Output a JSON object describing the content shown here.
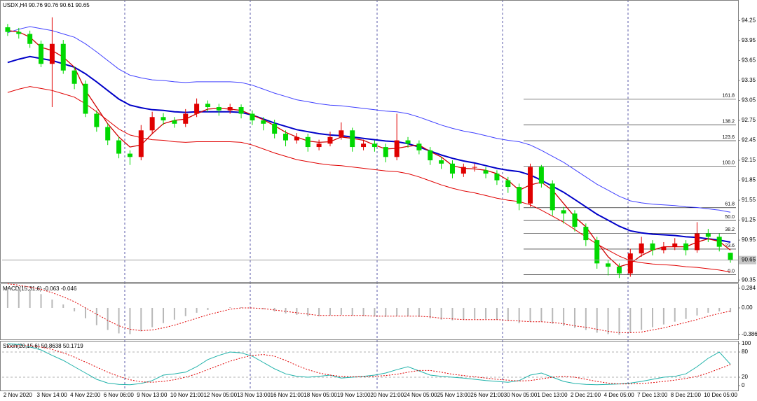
{
  "chart_data": [
    {
      "type": "candlestick",
      "title": "USDX,H4  90.76 90.76 90.61 90.65",
      "categories": [
        "2 Nov 2020",
        null,
        null,
        "3 Nov 14:00",
        null,
        null,
        "4 Nov 22:00",
        null,
        null,
        "6 Nov 06:00",
        null,
        null,
        "9 Nov 13:00",
        null,
        null,
        "10 Nov 21:00",
        null,
        null,
        "12 Nov 05:00",
        null,
        null,
        "13 Nov 13:00",
        null,
        null,
        "16 Nov 21:00",
        null,
        null,
        "18 Nov 05:00",
        null,
        null,
        "19 Nov 13:00",
        null,
        null,
        "20 Nov 21:00",
        null,
        null,
        "24 Nov 05:00",
        null,
        null,
        "25 Nov 13:00",
        null,
        null,
        "26 Nov 21:00",
        null,
        null,
        "30 Nov 05:00",
        null,
        null,
        "1 Dec 13:00",
        null,
        null,
        "2 Dec 21:00",
        null,
        null,
        "4 Dec 05:00",
        null,
        null,
        "7 Dec 13:00",
        null,
        null,
        "8 Dec 21:00",
        null,
        null,
        "10 Dec 05:00",
        null,
        null
      ],
      "open": [
        94.15,
        94.08,
        94.05,
        93.9,
        93.6,
        93.9,
        93.5,
        93.3,
        92.85,
        92.65,
        92.45,
        92.25,
        92.2,
        92.6,
        92.8,
        92.75,
        92.7,
        92.85,
        93.0,
        92.95,
        92.9,
        92.95,
        92.85,
        92.75,
        92.7,
        92.55,
        92.45,
        92.5,
        92.35,
        92.4,
        92.5,
        92.6,
        92.35,
        92.4,
        92.35,
        92.2,
        92.45,
        92.4,
        92.3,
        92.15,
        92.1,
        91.95,
        92.05,
        92.0,
        91.95,
        91.85,
        91.75,
        91.5,
        92.05,
        91.8,
        91.4,
        91.35,
        91.15,
        90.95,
        90.6,
        90.55,
        90.45,
        90.75,
        90.9,
        90.8,
        90.85,
        90.9,
        90.8,
        91.05,
        91.0,
        90.76
      ],
      "high": [
        94.2,
        94.14,
        94.1,
        93.95,
        94.3,
        93.96,
        93.56,
        93.35,
        92.9,
        92.7,
        92.5,
        92.3,
        92.68,
        92.88,
        92.86,
        92.8,
        92.92,
        93.08,
        93.05,
        93.0,
        93.0,
        92.99,
        92.9,
        92.8,
        92.76,
        92.6,
        92.56,
        92.55,
        92.46,
        92.58,
        92.72,
        92.64,
        92.46,
        92.45,
        92.4,
        92.85,
        92.5,
        92.45,
        92.35,
        92.2,
        92.15,
        92.1,
        92.1,
        92.05,
        92.0,
        91.9,
        91.8,
        92.1,
        92.08,
        91.85,
        91.45,
        91.4,
        91.2,
        91.0,
        90.65,
        90.6,
        90.82,
        91.0,
        90.95,
        90.92,
        90.98,
        90.95,
        91.22,
        91.12,
        91.05,
        90.76
      ],
      "low": [
        94.02,
        93.98,
        93.84,
        93.55,
        92.95,
        93.45,
        93.22,
        92.8,
        92.58,
        92.38,
        92.18,
        92.08,
        92.15,
        92.55,
        92.68,
        92.64,
        92.65,
        92.8,
        92.88,
        92.82,
        92.85,
        92.78,
        92.68,
        92.6,
        92.48,
        92.36,
        92.4,
        92.28,
        92.3,
        92.36,
        92.46,
        92.28,
        92.3,
        92.28,
        92.12,
        92.15,
        92.34,
        92.24,
        92.08,
        92.02,
        91.88,
        91.9,
        91.98,
        91.88,
        91.78,
        91.66,
        91.4,
        91.45,
        91.74,
        91.32,
        91.2,
        91.08,
        90.86,
        90.52,
        90.42,
        90.38,
        90.4,
        90.7,
        90.72,
        90.75,
        90.8,
        90.72,
        90.76,
        90.92,
        90.78,
        90.61
      ],
      "close": [
        94.08,
        94.05,
        93.9,
        93.6,
        93.9,
        93.5,
        93.3,
        92.85,
        92.65,
        92.45,
        92.25,
        92.2,
        92.6,
        92.8,
        92.75,
        92.7,
        92.85,
        93.0,
        92.95,
        92.9,
        92.95,
        92.85,
        92.75,
        92.7,
        92.55,
        92.45,
        92.5,
        92.35,
        92.4,
        92.5,
        92.6,
        92.35,
        92.4,
        92.35,
        92.2,
        92.45,
        92.4,
        92.3,
        92.15,
        92.1,
        91.95,
        92.05,
        92.05,
        91.95,
        91.85,
        91.75,
        91.5,
        92.05,
        91.8,
        91.4,
        91.35,
        91.15,
        90.95,
        90.6,
        90.55,
        90.45,
        90.75,
        90.9,
        90.8,
        90.85,
        90.9,
        90.8,
        91.05,
        91.0,
        90.85,
        90.65
      ],
      "up_color": "#e00000",
      "down_color": "#00d800",
      "series": [
        {
          "color": "#4040ff",
          "values": [
            94.07,
            94.12,
            94.16,
            94.13,
            94.1,
            94.05,
            94.0,
            93.9,
            93.78,
            93.65,
            93.52,
            93.43,
            93.39,
            93.36,
            93.35,
            93.33,
            93.32,
            93.33,
            93.33,
            93.33,
            93.33,
            93.32,
            93.28,
            93.22,
            93.16,
            93.11,
            93.06,
            93.03,
            93.0,
            92.98,
            92.97,
            92.95,
            92.93,
            92.91,
            92.89,
            92.88,
            92.85,
            92.8,
            92.74,
            92.68,
            92.63,
            92.59,
            92.56,
            92.52,
            92.48,
            92.45,
            92.43,
            92.38,
            92.3,
            92.21,
            92.12,
            92.01,
            91.9,
            91.79,
            91.7,
            91.61,
            91.54,
            91.51,
            91.49,
            91.48,
            91.47,
            91.45,
            91.44,
            91.42,
            91.4,
            91.37
          ]
        },
        {
          "color": "#e00000",
          "values": [
            93.17,
            93.22,
            93.26,
            93.23,
            93.2,
            93.15,
            93.1,
            93.0,
            92.88,
            92.75,
            92.62,
            92.53,
            92.49,
            92.46,
            92.45,
            92.43,
            92.42,
            92.43,
            92.43,
            92.43,
            92.43,
            92.42,
            92.38,
            92.32,
            92.26,
            92.21,
            92.16,
            92.13,
            92.1,
            92.08,
            92.07,
            92.05,
            92.03,
            92.01,
            91.99,
            91.98,
            91.95,
            91.9,
            91.84,
            91.78,
            91.73,
            91.69,
            91.66,
            91.62,
            91.58,
            91.55,
            91.53,
            91.48,
            91.4,
            91.31,
            91.22,
            91.11,
            91.0,
            90.89,
            90.8,
            90.71,
            90.64,
            90.61,
            90.59,
            90.58,
            90.57,
            90.55,
            90.54,
            90.52,
            90.5,
            90.47
          ]
        },
        {
          "color": "#0000c8",
          "width": 2,
          "values": [
            93.62,
            93.67,
            93.71,
            93.68,
            93.65,
            93.6,
            93.55,
            93.45,
            93.33,
            93.2,
            93.07,
            92.98,
            92.94,
            92.91,
            92.9,
            92.88,
            92.87,
            92.88,
            92.88,
            92.88,
            92.88,
            92.87,
            92.83,
            92.77,
            92.71,
            92.66,
            92.61,
            92.58,
            92.55,
            92.53,
            92.52,
            92.5,
            92.48,
            92.46,
            92.44,
            92.43,
            92.4,
            92.35,
            92.29,
            92.23,
            92.18,
            92.14,
            92.11,
            92.07,
            92.03,
            92.0,
            91.98,
            91.93,
            91.85,
            91.76,
            91.67,
            91.56,
            91.45,
            91.34,
            91.25,
            91.16,
            91.09,
            91.06,
            91.04,
            91.03,
            91.02,
            91.0,
            90.99,
            90.97,
            90.95,
            90.92
          ]
        },
        {
          "color": "#d00000",
          "width": 1.3,
          "values": [
            94.1,
            94.08,
            94.0,
            93.85,
            93.8,
            93.7,
            93.55,
            93.2,
            92.95,
            92.7,
            92.5,
            92.35,
            92.38,
            92.55,
            92.7,
            92.75,
            92.77,
            92.85,
            92.92,
            92.93,
            92.92,
            92.9,
            92.83,
            92.76,
            92.67,
            92.57,
            92.5,
            92.44,
            92.42,
            92.43,
            92.5,
            92.48,
            92.45,
            92.38,
            92.32,
            92.33,
            92.36,
            92.38,
            92.28,
            92.2,
            92.07,
            92.03,
            92.02,
            92.0,
            91.95,
            91.85,
            91.7,
            91.78,
            91.82,
            91.7,
            91.5,
            91.3,
            91.15,
            90.92,
            90.7,
            90.55,
            90.6,
            90.72,
            90.8,
            90.85,
            90.85,
            90.85,
            90.92,
            90.97,
            90.93,
            90.8
          ]
        }
      ],
      "fibo": {
        "low": 90.43,
        "high": 92.06,
        "color": "#000000",
        "levels": [
          161.8,
          138.2,
          123.6,
          {
            "value": 100,
            "label": "100.0"
          },
          61.8,
          {
            "value": 50,
            "label": "50.0"
          },
          38.2,
          23.6,
          {
            "value": 0,
            "label": "0.0"
          }
        ]
      },
      "last_price": 90.65,
      "ylim": [
        90.32,
        94.56
      ],
      "yticks": [
        94.25,
        93.95,
        93.65,
        93.35,
        93.05,
        92.75,
        92.45,
        92.15,
        91.85,
        91.55,
        91.25,
        90.95,
        90.35
      ]
    },
    {
      "type": "macd",
      "title": "MACD(15,31,6) -0.063 -0.046",
      "series": [
        {
          "kind": "bar",
          "color": "#b8b8b8",
          "values": [
            0.3,
            0.28,
            0.25,
            0.2,
            0.12,
            0.05,
            -0.05,
            -0.15,
            -0.25,
            -0.32,
            -0.37,
            -0.38,
            -0.34,
            -0.28,
            -0.22,
            -0.17,
            -0.12,
            -0.07,
            -0.03,
            0.0,
            0.01,
            0.01,
            0.0,
            -0.02,
            -0.05,
            -0.08,
            -0.1,
            -0.12,
            -0.12,
            -0.11,
            -0.1,
            -0.11,
            -0.12,
            -0.12,
            -0.13,
            -0.12,
            -0.12,
            -0.13,
            -0.15,
            -0.17,
            -0.18,
            -0.17,
            -0.16,
            -0.16,
            -0.17,
            -0.19,
            -0.22,
            -0.2,
            -0.2,
            -0.23,
            -0.26,
            -0.29,
            -0.32,
            -0.36,
            -0.38,
            -0.39,
            -0.36,
            -0.32,
            -0.28,
            -0.24,
            -0.2,
            -0.16,
            -0.11,
            -0.07,
            -0.05,
            -0.063
          ]
        },
        {
          "color": "#e00000",
          "dashed": true,
          "values": [
            0.35,
            0.33,
            0.3,
            0.27,
            0.22,
            0.16,
            0.09,
            0.0,
            -0.09,
            -0.18,
            -0.26,
            -0.31,
            -0.33,
            -0.32,
            -0.29,
            -0.25,
            -0.2,
            -0.15,
            -0.1,
            -0.06,
            -0.02,
            0.0,
            0.0,
            -0.01,
            -0.03,
            -0.05,
            -0.07,
            -0.09,
            -0.11,
            -0.11,
            -0.11,
            -0.11,
            -0.11,
            -0.12,
            -0.12,
            -0.12,
            -0.12,
            -0.12,
            -0.13,
            -0.15,
            -0.16,
            -0.17,
            -0.17,
            -0.17,
            -0.17,
            -0.18,
            -0.19,
            -0.2,
            -0.2,
            -0.21,
            -0.23,
            -0.26,
            -0.28,
            -0.31,
            -0.34,
            -0.36,
            -0.36,
            -0.35,
            -0.32,
            -0.29,
            -0.25,
            -0.21,
            -0.17,
            -0.12,
            -0.08,
            -0.046
          ]
        }
      ],
      "ylim": [
        -0.457,
        0.355
      ],
      "yticks": [
        0.284,
        {
          "value": 0,
          "label": "0.00"
        },
        -0.386
      ]
    },
    {
      "type": "stochastic",
      "title": "Stoch(20,15,6) 50.8638 50.1719",
      "series": [
        {
          "color": "#20b2aa",
          "values": [
            100,
            98,
            92,
            85,
            72,
            60,
            45,
            30,
            15,
            6,
            3,
            2,
            5,
            12,
            25,
            28,
            32,
            45,
            62,
            72,
            80,
            78,
            70,
            55,
            40,
            28,
            22,
            20,
            22,
            25,
            18,
            20,
            22,
            25,
            30,
            38,
            45,
            35,
            25,
            22,
            20,
            18,
            15,
            12,
            10,
            8,
            12,
            25,
            30,
            20,
            10,
            5,
            3,
            2,
            3,
            4,
            6,
            10,
            15,
            20,
            22,
            28,
            45,
            65,
            80,
            50.86
          ]
        },
        {
          "color": "#e00000",
          "dashed": true,
          "values": [
            92,
            95,
            95,
            92,
            86,
            78,
            68,
            56,
            44,
            32,
            22,
            14,
            9,
            8,
            10,
            14,
            20,
            28,
            38,
            48,
            58,
            66,
            72,
            74,
            70,
            60,
            48,
            38,
            30,
            25,
            22,
            21,
            21,
            22,
            24,
            27,
            32,
            36,
            36,
            32,
            27,
            24,
            21,
            18,
            15,
            13,
            11,
            12,
            16,
            20,
            22,
            20,
            15,
            10,
            6,
            4,
            4,
            5,
            7,
            10,
            13,
            17,
            22,
            30,
            40,
            50.17
          ]
        }
      ],
      "levels": [
        80,
        20
      ],
      "ylim": [
        -11.7,
        106.7
      ],
      "yticks": [
        100,
        80,
        20,
        0
      ]
    }
  ]
}
